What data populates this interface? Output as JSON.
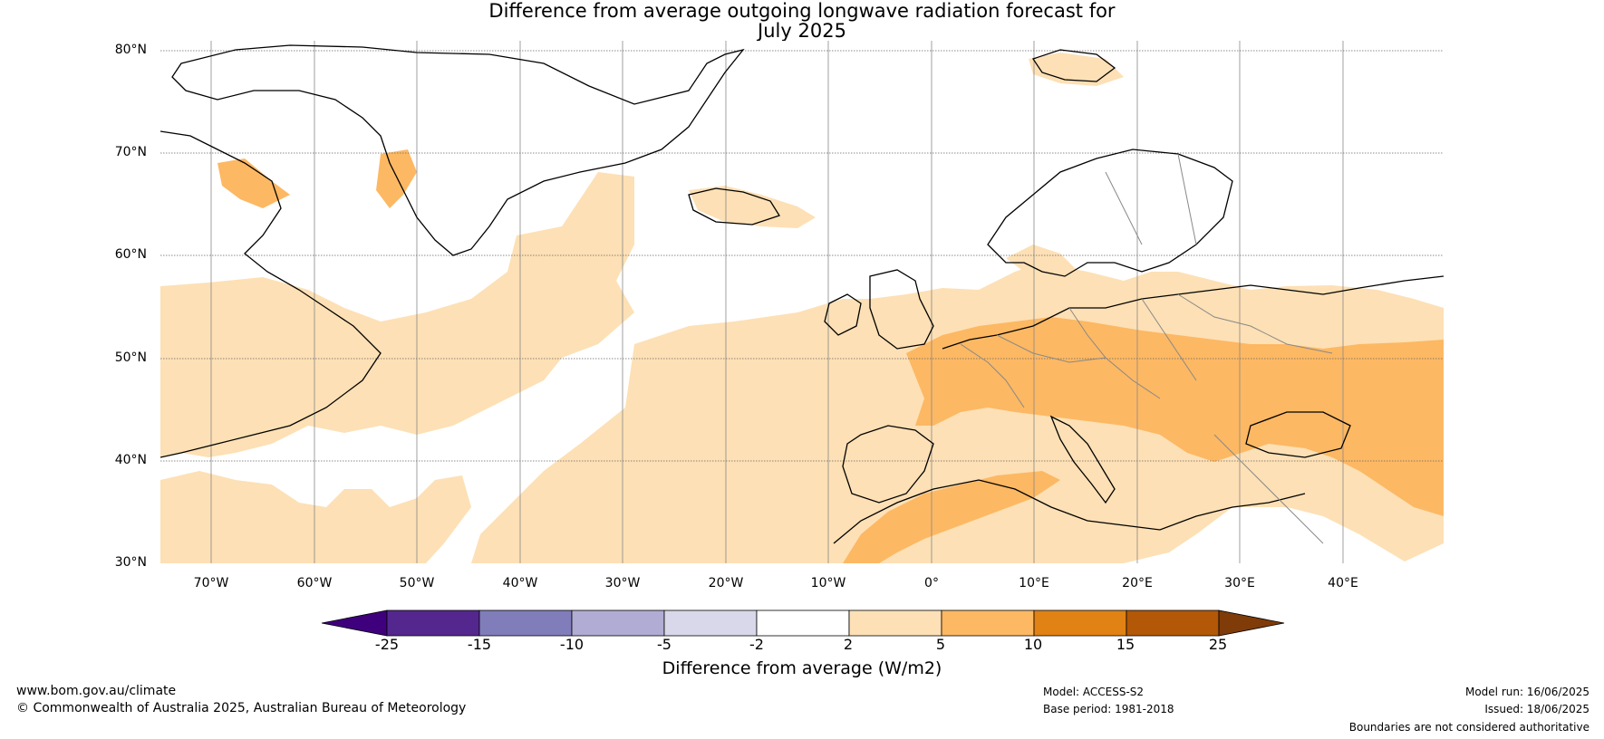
{
  "title_line1": "Difference from average outgoing longwave radiation forecast for",
  "title_line2": "July 2025",
  "map": {
    "lat_ticks": [
      "80°N",
      "70°N",
      "60°N",
      "50°N",
      "40°N",
      "30°N"
    ],
    "lon_ticks": [
      "70°W",
      "60°W",
      "50°W",
      "40°W",
      "30°W",
      "20°W",
      "10°W",
      "0°",
      "10°E",
      "20°E",
      "30°E",
      "40°E"
    ],
    "extent": {
      "lon": [
        -75,
        50
      ],
      "lat": [
        30,
        81
      ]
    }
  },
  "colorbar": {
    "title": "Difference from average (W/m2)",
    "ticks": [
      "-25",
      "-15",
      "-10",
      "-5",
      "-2",
      "2",
      "5",
      "10",
      "15",
      "25"
    ],
    "colors": [
      "#3f007d",
      "#54278f",
      "#807dba",
      "#b1acd3",
      "#d9d8ea",
      "#ffffff",
      "#fde0b5",
      "#fdb863",
      "#e08214",
      "#b35806",
      "#7f3b08"
    ]
  },
  "footer": {
    "website": "www.bom.gov.au/climate",
    "copyright": "© Commonwealth of Australia 2025, Australian Bureau of Meteorology",
    "model": "Model: ACCESS-S2",
    "base_period": "Base period: 1981-2018",
    "model_run": "Model run: 16/06/2025",
    "issued": "Issued: 18/06/2025",
    "disclaimer": "Boundaries are not considered authoritative"
  }
}
